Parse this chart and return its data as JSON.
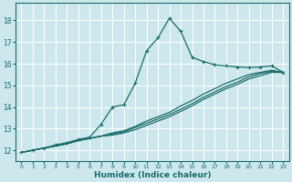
{
  "xlabel": "Humidex (Indice chaleur)",
  "ylabel": "",
  "background_color": "#cce8ec",
  "grid_color": "#ffffff",
  "line_color": "#1a6b6b",
  "xlim": [
    -0.5,
    23.5
  ],
  "ylim": [
    11.5,
    18.8
  ],
  "yticks": [
    12,
    13,
    14,
    15,
    16,
    17,
    18
  ],
  "xticks": [
    0,
    1,
    2,
    3,
    4,
    5,
    6,
    7,
    8,
    9,
    10,
    11,
    12,
    13,
    14,
    15,
    16,
    17,
    18,
    19,
    20,
    21,
    22,
    23
  ],
  "line1_x": [
    0,
    1,
    2,
    3,
    4,
    5,
    6,
    7,
    8,
    9,
    10,
    11,
    12,
    13,
    14,
    15,
    16,
    17,
    18,
    19,
    20,
    21,
    22,
    23
  ],
  "line1_y": [
    11.9,
    12.0,
    12.1,
    12.25,
    12.35,
    12.5,
    12.6,
    13.2,
    14.0,
    14.1,
    15.1,
    16.6,
    17.2,
    18.1,
    17.5,
    16.3,
    16.1,
    15.95,
    15.9,
    15.85,
    15.82,
    15.85,
    15.9,
    15.6
  ],
  "line2_x": [
    0,
    1,
    2,
    3,
    4,
    5,
    6,
    7,
    8,
    9,
    10,
    11,
    12,
    13,
    14,
    15,
    16,
    17,
    18,
    19,
    20,
    21,
    22,
    23
  ],
  "line2_y": [
    11.9,
    12.0,
    12.1,
    12.2,
    12.3,
    12.45,
    12.55,
    12.65,
    12.8,
    12.9,
    13.1,
    13.35,
    13.55,
    13.75,
    14.05,
    14.3,
    14.6,
    14.85,
    15.1,
    15.3,
    15.5,
    15.6,
    15.7,
    15.6
  ],
  "line3_x": [
    0,
    1,
    2,
    3,
    4,
    5,
    6,
    7,
    8,
    9,
    10,
    11,
    12,
    13,
    14,
    15,
    16,
    17,
    18,
    19,
    20,
    21,
    22,
    23
  ],
  "line3_y": [
    11.9,
    12.0,
    12.1,
    12.2,
    12.3,
    12.45,
    12.55,
    12.65,
    12.75,
    12.85,
    13.05,
    13.25,
    13.45,
    13.65,
    13.9,
    14.15,
    14.45,
    14.7,
    14.95,
    15.15,
    15.4,
    15.55,
    15.65,
    15.6
  ],
  "line4_x": [
    0,
    1,
    2,
    3,
    4,
    5,
    6,
    7,
    8,
    9,
    10,
    11,
    12,
    13,
    14,
    15,
    16,
    17,
    18,
    19,
    20,
    21,
    22,
    23
  ],
  "line4_y": [
    11.9,
    12.0,
    12.1,
    12.2,
    12.3,
    12.45,
    12.55,
    12.65,
    12.7,
    12.8,
    12.95,
    13.15,
    13.35,
    13.55,
    13.8,
    14.05,
    14.35,
    14.6,
    14.85,
    15.05,
    15.3,
    15.45,
    15.6,
    15.6
  ]
}
